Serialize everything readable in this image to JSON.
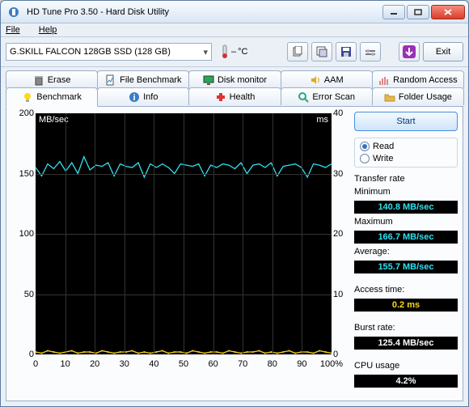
{
  "window": {
    "title": "HD Tune Pro 3.50 - Hard Disk Utility"
  },
  "menu": {
    "file": "File",
    "help": "Help"
  },
  "toolbar": {
    "device": "G.SKILL FALCON 128GB SSD (128 GB)",
    "temp": "°C",
    "exit": "Exit"
  },
  "tabs_row1": [
    {
      "label": "Erase",
      "icon": "trash"
    },
    {
      "label": "File Benchmark",
      "icon": "filebench"
    },
    {
      "label": "Disk monitor",
      "icon": "monitor"
    },
    {
      "label": "AAM",
      "icon": "speaker"
    },
    {
      "label": "Random Access",
      "icon": "random"
    }
  ],
  "tabs_row2": [
    {
      "label": "Benchmark",
      "icon": "bulb",
      "active": true
    },
    {
      "label": "Info",
      "icon": "info"
    },
    {
      "label": "Health",
      "icon": "health"
    },
    {
      "label": "Error Scan",
      "icon": "scan"
    },
    {
      "label": "Folder Usage",
      "icon": "folder"
    }
  ],
  "chart": {
    "left_label": "MB/sec",
    "right_label": "ms",
    "left_ticks": [
      0,
      50,
      100,
      150,
      200
    ],
    "right_ticks": [
      0,
      10,
      20,
      30,
      40
    ],
    "bottom_ticks": [
      "0",
      "10",
      "20",
      "30",
      "40",
      "50",
      "60",
      "70",
      "80",
      "90",
      "100%"
    ],
    "ymax": 200,
    "transfer_color": "#2ee0f0",
    "access_color": "#ffd817",
    "grid_color": "#333333",
    "background": "#000000",
    "transfer_points": [
      155,
      148,
      158,
      154,
      160,
      152,
      159,
      150,
      164,
      153,
      157,
      156,
      159,
      148,
      158,
      156,
      155,
      159,
      147,
      158,
      155,
      158,
      155,
      150,
      158,
      157,
      156,
      158,
      148,
      157,
      155,
      158,
      157,
      154,
      159,
      150,
      157,
      158,
      155,
      159,
      148,
      156,
      157,
      158,
      155,
      147,
      158,
      157,
      155,
      158
    ],
    "access_points": [
      2,
      1,
      3,
      2,
      1,
      2,
      3,
      1,
      2,
      2,
      1,
      3,
      2,
      1,
      2,
      2,
      3,
      1,
      2,
      1,
      2,
      3,
      1,
      2,
      2,
      1,
      3,
      2,
      1,
      2,
      2,
      1,
      3,
      2,
      1,
      2,
      2,
      3,
      1,
      2,
      1,
      2,
      3,
      1,
      2,
      2,
      1,
      3,
      2,
      1
    ]
  },
  "side": {
    "start": "Start",
    "read": "Read",
    "write": "Write",
    "transfer_label": "Transfer rate",
    "min_label": "Minimum",
    "min_val": "140.8 MB/sec",
    "max_label": "Maximum",
    "max_val": "166.7 MB/sec",
    "avg_label": "Average:",
    "avg_val": "155.7 MB/sec",
    "access_label": "Access time:",
    "access_val": "0.2 ms",
    "burst_label": "Burst rate:",
    "burst_val": "125.4 MB/sec",
    "cpu_label": "CPU usage",
    "cpu_val": "4.2%"
  }
}
